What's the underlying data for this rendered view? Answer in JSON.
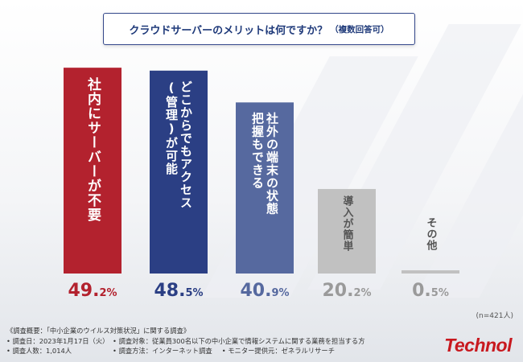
{
  "title": {
    "main": "クラウドサーバーのメリットは何ですか？",
    "sub": "（複数回答可）"
  },
  "chart_data": {
    "type": "bar",
    "title": "クラウドサーバーのメリットは何ですか？（複数回答可）",
    "categories": [
      "社内にサーバーが不要",
      "どこからでもアクセス(管理)が可能",
      "社外の端末の状態把握もできる",
      "導入が簡単",
      "その他"
    ],
    "values": [
      49.2,
      48.5,
      40.9,
      20.2,
      0.5
    ],
    "value_labels": [
      {
        "big": "49.",
        "small": "2%"
      },
      {
        "big": "48.",
        "small": "5%"
      },
      {
        "big": "40.",
        "small": "9%"
      },
      {
        "big": "20.",
        "small": "2%"
      },
      {
        "big": "0.",
        "small": "5%"
      }
    ],
    "bar_lines": [
      [
        "社内にサーバーが不要"
      ],
      [
        "どこからでもアクセス",
        "(管理)が可能"
      ],
      [
        "社外の端末の状態",
        "把握もできる"
      ],
      [
        "導入が簡単"
      ],
      [
        "その他"
      ]
    ],
    "colors": [
      "#b3222e",
      "#2b3f84",
      "#56699f",
      "#c1c1c1",
      "#c1c1c1"
    ],
    "label_colors": [
      "#b3222e",
      "#2b3f84",
      "#56699f",
      "#9a9a9a",
      "#9a9a9a"
    ],
    "ylim": [
      0,
      50
    ],
    "xlabel": "",
    "ylabel": "",
    "legend": "none",
    "grid": false
  },
  "n_note": "(n=421人)",
  "footer": {
    "line1": "《調査概要：「中小企業のウイルス対策状況」に関する調査》",
    "line2a": "• 調査日：2023年1月17日（火）",
    "line2b": "• 調査対象：従業員300名以下の中小企業で情報システムに関する業務を担当する方",
    "line3a": "• 調査人数：1,014人",
    "line3b": "• 調査方法：インターネット調査",
    "line3c": "• モニター提供元：ゼネラルリサーチ"
  },
  "logo": {
    "text": "Technol",
    "color": "#c8191f"
  }
}
